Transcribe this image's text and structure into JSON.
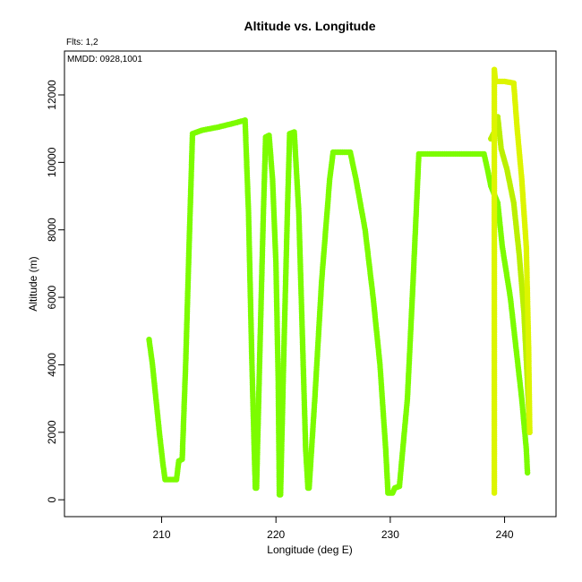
{
  "chart_data": {
    "type": "scatter",
    "title": "Altitude vs. Longitude",
    "annotations": [
      "Flts: 1,2",
      "MMDD: 0928,1001"
    ],
    "xlabel": "Longitude (deg E)",
    "ylabel": "Altitude (m)",
    "xlim": [
      201.5,
      244.5
    ],
    "ylim": [
      -500,
      13300
    ],
    "xticks": [
      210,
      220,
      230,
      240
    ],
    "yticks": [
      0,
      2000,
      4000,
      6000,
      8000,
      10000,
      12000
    ],
    "grid": false,
    "legend": "none",
    "series": [
      {
        "color": "#7CFC00",
        "points": [
          [
            208.9,
            4750
          ],
          [
            209.2,
            4000
          ],
          [
            209.5,
            3000
          ],
          [
            209.8,
            2000
          ],
          [
            210.1,
            1100
          ],
          [
            210.3,
            600
          ],
          [
            210.8,
            600
          ],
          [
            211.3,
            600
          ],
          [
            211.5,
            1150
          ],
          [
            211.8,
            1200
          ],
          [
            212.1,
            4000
          ],
          [
            212.4,
            7500
          ],
          [
            212.7,
            10850
          ],
          [
            213.5,
            10950
          ],
          [
            215.0,
            11050
          ],
          [
            216.2,
            11150
          ],
          [
            217.3,
            11250
          ],
          [
            217.6,
            8500
          ],
          [
            217.9,
            4000
          ],
          [
            218.1,
            1500
          ],
          [
            218.2,
            350
          ],
          [
            218.3,
            350
          ],
          [
            218.6,
            4500
          ],
          [
            218.9,
            8500
          ],
          [
            219.1,
            10750
          ],
          [
            219.4,
            10800
          ],
          [
            219.7,
            9500
          ],
          [
            220.0,
            7000
          ],
          [
            220.2,
            3500
          ],
          [
            220.3,
            150
          ],
          [
            220.4,
            150
          ],
          [
            220.7,
            4500
          ],
          [
            221.0,
            8500
          ],
          [
            221.2,
            10850
          ],
          [
            221.6,
            10900
          ],
          [
            222.0,
            8500
          ],
          [
            222.3,
            5000
          ],
          [
            222.6,
            1500
          ],
          [
            222.8,
            350
          ],
          [
            222.9,
            350
          ],
          [
            223.4,
            3000
          ],
          [
            224.0,
            6500
          ],
          [
            224.7,
            9500
          ],
          [
            225.0,
            10300
          ],
          [
            226.0,
            10300
          ],
          [
            226.5,
            10300
          ],
          [
            227.0,
            9500
          ],
          [
            227.8,
            8000
          ],
          [
            228.5,
            6000
          ],
          [
            229.1,
            4000
          ],
          [
            229.6,
            1500
          ],
          [
            229.8,
            200
          ],
          [
            230.2,
            200
          ],
          [
            230.4,
            350
          ],
          [
            230.8,
            400
          ],
          [
            231.5,
            3000
          ],
          [
            232.0,
            6500
          ],
          [
            232.5,
            10250
          ],
          [
            234.0,
            10250
          ],
          [
            235.5,
            10250
          ],
          [
            237.0,
            10250
          ],
          [
            238.2,
            10250
          ],
          [
            238.5,
            9800
          ],
          [
            238.8,
            9300
          ],
          [
            239.4,
            8800
          ],
          [
            239.8,
            7500
          ],
          [
            240.5,
            6000
          ],
          [
            241.0,
            4500
          ],
          [
            241.5,
            3000
          ],
          [
            241.9,
            1500
          ],
          [
            242.0,
            800
          ]
        ]
      },
      {
        "color": "#BBF000",
        "points": [
          [
            238.8,
            10700
          ],
          [
            239.1,
            10900
          ],
          [
            239.4,
            11350
          ],
          [
            239.7,
            10400
          ],
          [
            240.2,
            9800
          ],
          [
            240.8,
            8800
          ],
          [
            241.3,
            7200
          ],
          [
            241.7,
            5500
          ],
          [
            242.0,
            3500
          ],
          [
            242.2,
            2000
          ]
        ]
      },
      {
        "color": "#DDF500",
        "points": [
          [
            239.1,
            200
          ],
          [
            239.1,
            2000
          ],
          [
            239.1,
            4000
          ],
          [
            239.1,
            6000
          ],
          [
            239.1,
            8000
          ],
          [
            239.1,
            10000
          ],
          [
            239.1,
            12000
          ],
          [
            239.1,
            12750
          ],
          [
            239.2,
            12400
          ],
          [
            240.0,
            12400
          ],
          [
            240.8,
            12350
          ],
          [
            241.1,
            11000
          ],
          [
            241.5,
            9500
          ],
          [
            241.9,
            7500
          ],
          [
            242.1,
            4500
          ],
          [
            242.2,
            2000
          ]
        ]
      }
    ]
  }
}
